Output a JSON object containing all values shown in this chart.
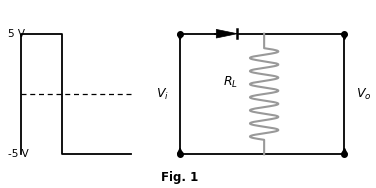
{
  "bg_color": "#ffffff",
  "fig_label": "Fig. 1",
  "lw": 1.3,
  "sq_wave": {
    "color": "#000000",
    "dashed_color": "#000000",
    "label_top": "5 V",
    "label_bot": "-5 V"
  },
  "circuit": {
    "Vi_label": "$V_i$",
    "RL_label": "$R_L$",
    "Vo_label": "$V_o$",
    "resistor_color": "#999999"
  }
}
